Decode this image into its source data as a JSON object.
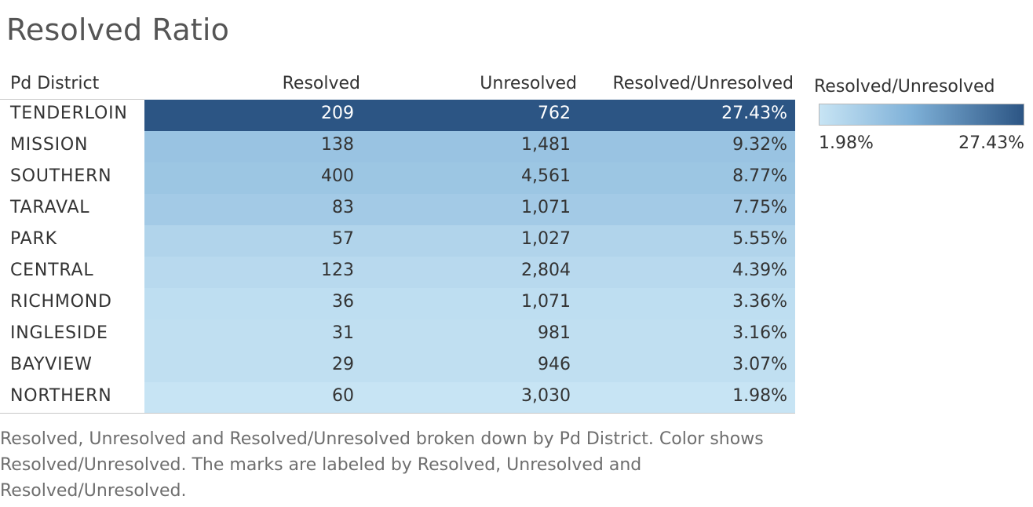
{
  "title": "Resolved Ratio",
  "caption": "Resolved, Unresolved and Resolved/Unresolved broken down by Pd District.  Color shows Resolved/Unresolved.  The marks are labeled by Resolved, Unresolved and Resolved/Unresolved.",
  "legend": {
    "title": "Resolved/Unresolved",
    "min_label": "1.98%",
    "max_label": "27.43%",
    "min": 1.98,
    "max": 27.43,
    "color_low": "#c7e4f4",
    "color_high": "#2c5584"
  },
  "chart_data": {
    "type": "table",
    "title": "Resolved Ratio",
    "columns": [
      "Pd District",
      "Resolved",
      "Unresolved",
      "Resolved/Unresolved"
    ],
    "rows": [
      {
        "district": "TENDERLOIN",
        "resolved": "209",
        "unresolved": "762",
        "ratio_label": "27.43%",
        "ratio": 27.43
      },
      {
        "district": "MISSION",
        "resolved": "138",
        "unresolved": "1,481",
        "ratio_label": "9.32%",
        "ratio": 9.32
      },
      {
        "district": "SOUTHERN",
        "resolved": "400",
        "unresolved": "4,561",
        "ratio_label": "8.77%",
        "ratio": 8.77
      },
      {
        "district": "TARAVAL",
        "resolved": "83",
        "unresolved": "1,071",
        "ratio_label": "7.75%",
        "ratio": 7.75
      },
      {
        "district": "PARK",
        "resolved": "57",
        "unresolved": "1,027",
        "ratio_label": "5.55%",
        "ratio": 5.55
      },
      {
        "district": "CENTRAL",
        "resolved": "123",
        "unresolved": "2,804",
        "ratio_label": "4.39%",
        "ratio": 4.39
      },
      {
        "district": "RICHMOND",
        "resolved": "36",
        "unresolved": "1,071",
        "ratio_label": "3.36%",
        "ratio": 3.36
      },
      {
        "district": "INGLESIDE",
        "resolved": "31",
        "unresolved": "981",
        "ratio_label": "3.16%",
        "ratio": 3.16
      },
      {
        "district": "BAYVIEW",
        "resolved": "29",
        "unresolved": "946",
        "ratio_label": "3.07%",
        "ratio": 3.07
      },
      {
        "district": "NORTHERN",
        "resolved": "60",
        "unresolved": "3,030",
        "ratio_label": "1.98%",
        "ratio": 1.98
      }
    ]
  }
}
